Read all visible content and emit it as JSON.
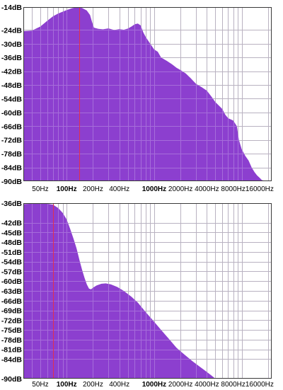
{
  "colors": {
    "background": "#ffffff",
    "plot_background": "#ffffff",
    "fill": "#8c3fcf",
    "grid": "#a9a9a9",
    "marker": "#e03050",
    "frame": "#3a3a3a"
  },
  "chart_data": [
    {
      "type": "area",
      "title": "",
      "xlabel": "",
      "ylabel": "",
      "x_scale": "log",
      "xlim": [
        32,
        22000
      ],
      "ylim": [
        -90,
        -14
      ],
      "grid": true,
      "marker_freq_hz": 140,
      "y_ticks": [
        {
          "v": -14,
          "label": "-14dB"
        },
        {
          "v": -24,
          "label": "-24dB"
        },
        {
          "v": -30,
          "label": "-30dB"
        },
        {
          "v": -36,
          "label": "-36dB"
        },
        {
          "v": -42,
          "label": "-42dB"
        },
        {
          "v": -48,
          "label": "-48dB"
        },
        {
          "v": -54,
          "label": "-54dB"
        },
        {
          "v": -60,
          "label": "-60dB"
        },
        {
          "v": -66,
          "label": "-66dB"
        },
        {
          "v": -72,
          "label": "-72dB"
        },
        {
          "v": -78,
          "label": "-78dB"
        },
        {
          "v": -84,
          "label": "-84dB"
        },
        {
          "v": -90,
          "label": "-90dB"
        }
      ],
      "x_ticks": [
        {
          "v": 50,
          "label": "50Hz",
          "bold": false
        },
        {
          "v": 100,
          "label": "100Hz",
          "bold": true
        },
        {
          "v": 200,
          "label": "200Hz",
          "bold": false
        },
        {
          "v": 400,
          "label": "400Hz",
          "bold": false
        },
        {
          "v": 1000,
          "label": "1000Hz",
          "bold": true
        },
        {
          "v": 2000,
          "label": "2000Hz",
          "bold": false
        },
        {
          "v": 4000,
          "label": "4000Hz",
          "bold": false
        },
        {
          "v": 8000,
          "label": "8000Hz",
          "bold": false
        },
        {
          "v": 16000,
          "label": "16000Hz",
          "bold": false
        }
      ],
      "series": [
        {
          "points": [
            [
              32,
              -24.5
            ],
            [
              40,
              -24.3
            ],
            [
              50,
              -22.5
            ],
            [
              60,
              -20
            ],
            [
              70,
              -18
            ],
            [
              80,
              -16.8
            ],
            [
              90,
              -16
            ],
            [
              100,
              -15.3
            ],
            [
              115,
              -14.5
            ],
            [
              130,
              -14.1
            ],
            [
              150,
              -14.4
            ],
            [
              170,
              -15.5
            ],
            [
              185,
              -17.5
            ],
            [
              195,
              -20.5
            ],
            [
              205,
              -23
            ],
            [
              230,
              -23.5
            ],
            [
              260,
              -23.7
            ],
            [
              300,
              -23.3
            ],
            [
              350,
              -24
            ],
            [
              400,
              -23.6
            ],
            [
              450,
              -23.9
            ],
            [
              500,
              -23.4
            ],
            [
              550,
              -22.5
            ],
            [
              600,
              -21.5
            ],
            [
              650,
              -21.2
            ],
            [
              700,
              -22
            ],
            [
              750,
              -25
            ],
            [
              800,
              -27
            ],
            [
              900,
              -30
            ],
            [
              1000,
              -32.5
            ],
            [
              1100,
              -33.5
            ],
            [
              1200,
              -36
            ],
            [
              1400,
              -37.5
            ],
            [
              1600,
              -39
            ],
            [
              1800,
              -40.5
            ],
            [
              2000,
              -41.5
            ],
            [
              2300,
              -43
            ],
            [
              2600,
              -45
            ],
            [
              3000,
              -47.5
            ],
            [
              3500,
              -49
            ],
            [
              4000,
              -50.5
            ],
            [
              4500,
              -53
            ],
            [
              5000,
              -55.5
            ],
            [
              5500,
              -57
            ],
            [
              6000,
              -58.5
            ],
            [
              6500,
              -61
            ],
            [
              7000,
              -62.5
            ],
            [
              8000,
              -63.5
            ],
            [
              8800,
              -66
            ],
            [
              9300,
              -72
            ],
            [
              10000,
              -76
            ],
            [
              11000,
              -79
            ],
            [
              12000,
              -81
            ],
            [
              13000,
              -84
            ],
            [
              14000,
              -86
            ],
            [
              15000,
              -87.5
            ],
            [
              16000,
              -88.5
            ],
            [
              17000,
              -89.5
            ],
            [
              19000,
              -90
            ]
          ]
        }
      ]
    },
    {
      "type": "area",
      "title": "",
      "xlabel": "",
      "ylabel": "",
      "x_scale": "log",
      "xlim": [
        32,
        22000
      ],
      "ylim": [
        -90,
        -36
      ],
      "grid": true,
      "marker_freq_hz": 70,
      "y_ticks": [
        {
          "v": -36,
          "label": "-36dB"
        },
        {
          "v": -42,
          "label": "-42dB"
        },
        {
          "v": -45,
          "label": "-45dB"
        },
        {
          "v": -48,
          "label": "-48dB"
        },
        {
          "v": -51,
          "label": "-51dB"
        },
        {
          "v": -54,
          "label": "-54dB"
        },
        {
          "v": -57,
          "label": "-57dB"
        },
        {
          "v": -60,
          "label": "-60dB"
        },
        {
          "v": -63,
          "label": "-63dB"
        },
        {
          "v": -66,
          "label": "-66dB"
        },
        {
          "v": -69,
          "label": "-69dB"
        },
        {
          "v": -72,
          "label": "-72dB"
        },
        {
          "v": -75,
          "label": "-75dB"
        },
        {
          "v": -78,
          "label": "-78dB"
        },
        {
          "v": -81,
          "label": "-81dB"
        },
        {
          "v": -84,
          "label": "-84dB"
        },
        {
          "v": -90,
          "label": "-90dB"
        }
      ],
      "x_ticks": [
        {
          "v": 50,
          "label": "50Hz",
          "bold": false
        },
        {
          "v": 100,
          "label": "100Hz",
          "bold": true
        },
        {
          "v": 200,
          "label": "200Hz",
          "bold": false
        },
        {
          "v": 400,
          "label": "400Hz",
          "bold": false
        },
        {
          "v": 1000,
          "label": "1000Hz",
          "bold": true
        },
        {
          "v": 2000,
          "label": "2000Hz",
          "bold": false
        },
        {
          "v": 4000,
          "label": "4000Hz",
          "bold": false
        },
        {
          "v": 8000,
          "label": "8000Hz",
          "bold": false
        },
        {
          "v": 16000,
          "label": "16000Hz",
          "bold": false
        }
      ],
      "series": [
        {
          "points": [
            [
              32,
              -36.3
            ],
            [
              40,
              -36.2
            ],
            [
              50,
              -36.1
            ],
            [
              60,
              -36.2
            ],
            [
              70,
              -36.5
            ],
            [
              80,
              -37.5
            ],
            [
              90,
              -39
            ],
            [
              100,
              -41
            ],
            [
              110,
              -44
            ],
            [
              120,
              -47
            ],
            [
              130,
              -50
            ],
            [
              140,
              -53.5
            ],
            [
              150,
              -56.5
            ],
            [
              160,
              -59
            ],
            [
              170,
              -61
            ],
            [
              180,
              -62.3
            ],
            [
              190,
              -62.5
            ],
            [
              200,
              -62
            ],
            [
              220,
              -61.3
            ],
            [
              250,
              -60.8
            ],
            [
              280,
              -60.7
            ],
            [
              320,
              -61
            ],
            [
              380,
              -61.8
            ],
            [
              450,
              -63
            ],
            [
              550,
              -64.8
            ],
            [
              650,
              -66.6
            ],
            [
              800,
              -69.5
            ],
            [
              1000,
              -72.5
            ],
            [
              1200,
              -75
            ],
            [
              1500,
              -78
            ],
            [
              1800,
              -80.5
            ],
            [
              2200,
              -82.5
            ],
            [
              2700,
              -84.5
            ],
            [
              3200,
              -86
            ],
            [
              3800,
              -87.5
            ],
            [
              4500,
              -89
            ],
            [
              5000,
              -90
            ]
          ]
        }
      ]
    }
  ]
}
